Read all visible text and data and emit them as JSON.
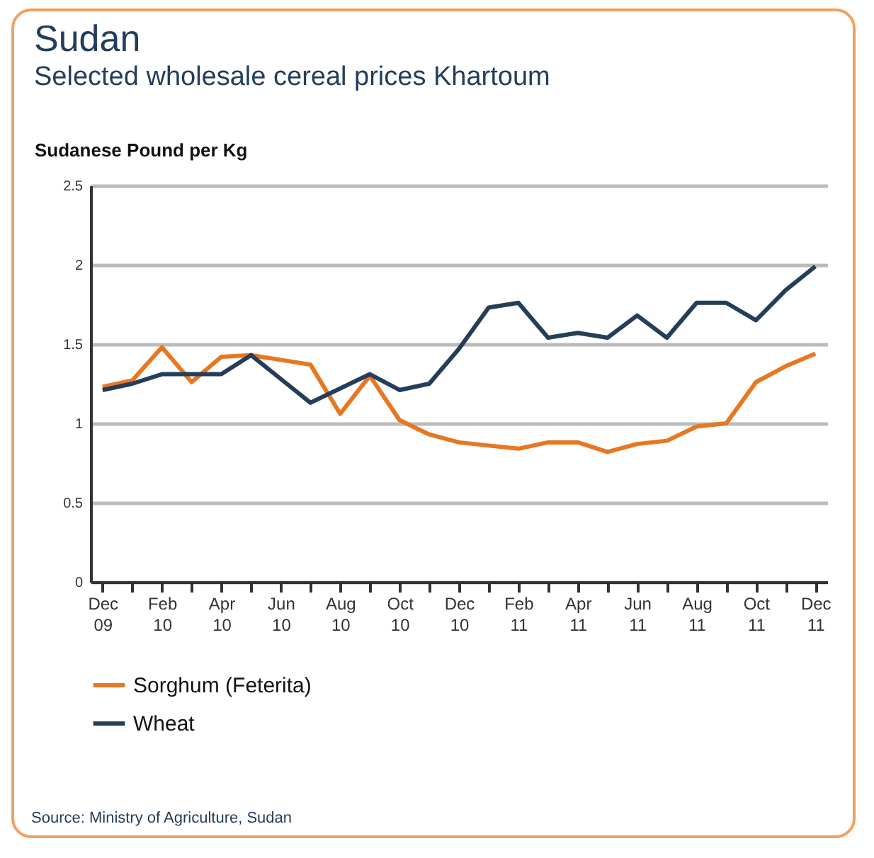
{
  "chart_data": {
    "type": "line",
    "title": "Sudan",
    "subtitle": "Selected wholesale cereal prices Khartoum",
    "ylabel": "Sudanese Pound per Kg",
    "categories": [
      "Dec 09",
      null,
      "Feb 10",
      null,
      "Apr 10",
      null,
      "Jun 10",
      null,
      "Aug 10",
      null,
      "Oct 10",
      null,
      "Dec 10",
      null,
      "Feb 11",
      null,
      "Apr 11",
      null,
      "Jun 11",
      null,
      "Aug 11",
      null,
      "Oct 11",
      null,
      "Dec 11"
    ],
    "series": [
      {
        "name": "Sorghum (Feterita)",
        "color": "#e87722",
        "values": [
          1.23,
          1.27,
          1.48,
          1.26,
          1.42,
          1.43,
          1.4,
          1.37,
          1.06,
          1.3,
          1.02,
          0.93,
          0.88,
          0.86,
          0.84,
          0.88,
          0.88,
          0.82,
          0.87,
          0.89,
          0.98,
          1.0,
          1.26,
          1.36,
          1.44
        ]
      },
      {
        "name": "Wheat",
        "color": "#243e5a",
        "values": [
          1.21,
          1.25,
          1.31,
          1.31,
          1.31,
          1.43,
          1.28,
          1.13,
          1.22,
          1.31,
          1.21,
          1.25,
          1.47,
          1.73,
          1.76,
          1.54,
          1.57,
          1.54,
          1.68,
          1.54,
          1.76,
          1.76,
          1.65,
          1.84,
          1.99
        ]
      }
    ],
    "ylim": [
      0,
      2.5
    ],
    "yticks": [
      0,
      0.5,
      1,
      1.5,
      2,
      2.5
    ],
    "grid": "y",
    "legend": "bottom",
    "marker": "none",
    "line_style": "solid",
    "annotations": [
      "Source: Ministry of Agriculture, Sudan"
    ]
  }
}
